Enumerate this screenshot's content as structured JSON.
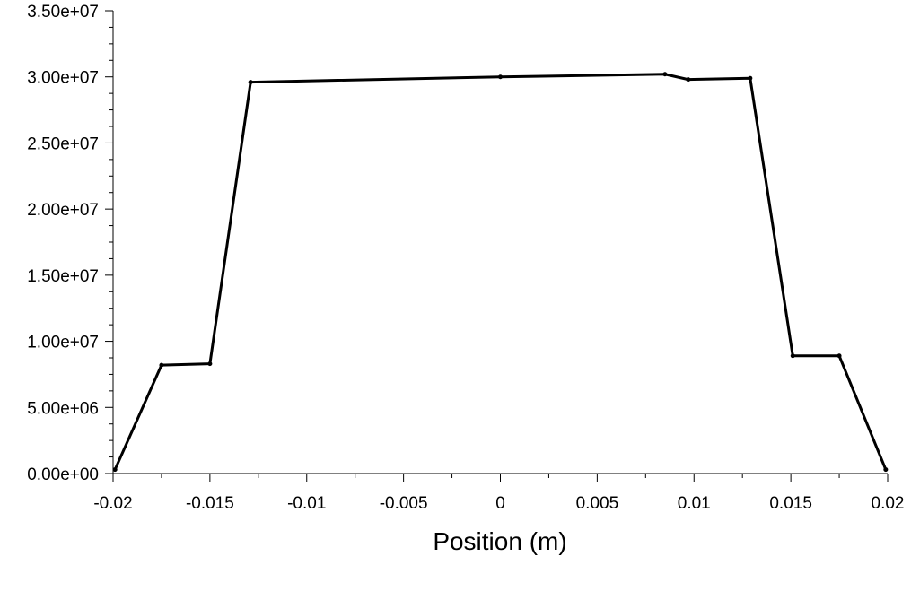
{
  "chart_data": {
    "type": "line",
    "title": "",
    "xlabel": "Position (m)",
    "ylabel": "",
    "xlim": [
      -0.02,
      0.02
    ],
    "ylim": [
      0,
      35000000
    ],
    "x_ticks": [
      -0.02,
      -0.015,
      -0.01,
      -0.005,
      0,
      0.005,
      0.01,
      0.015,
      0.02
    ],
    "x_tick_labels": [
      "-0.02",
      "-0.015",
      "-0.01",
      "-0.005",
      "0",
      "0.005",
      "0.01",
      "0.015",
      "0.02"
    ],
    "y_ticks": [
      0,
      5000000,
      10000000,
      15000000,
      20000000,
      25000000,
      30000000,
      35000000
    ],
    "y_tick_labels": [
      "0.00e+00",
      "5.00e+06",
      "1.00e+07",
      "1.50e+07",
      "2.00e+07",
      "2.50e+07",
      "3.00e+07",
      "3.50e+07"
    ],
    "grid": false,
    "legend": "none",
    "line_color": "#000000",
    "series": [
      {
        "x": [
          -0.0199,
          -0.0175,
          -0.015,
          -0.0129,
          0.0,
          0.0085,
          0.0097,
          0.0129,
          0.0151,
          0.0175,
          0.0199
        ],
        "values": [
          300000,
          8200000,
          8300000,
          29600000,
          30000000,
          30200000,
          29800000,
          29900000,
          8900000,
          8900000,
          300000
        ]
      }
    ]
  }
}
